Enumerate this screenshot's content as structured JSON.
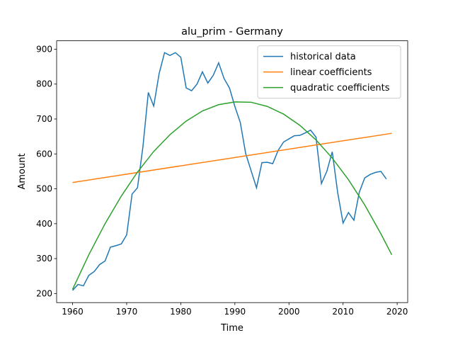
{
  "chart_data": {
    "type": "line",
    "title": "alu_prim - Germany",
    "x_label": "Time",
    "y_label": "Amount",
    "xlim": [
      1957.05,
      2021.95
    ],
    "xticks": [
      1960,
      1970,
      1980,
      1990,
      2000,
      2010,
      2020
    ],
    "ylim": [
      174,
      924
    ],
    "yticks": [
      200,
      300,
      400,
      500,
      600,
      700,
      800,
      900
    ],
    "legend": "upper right",
    "series": [
      {
        "name": "historical data",
        "color": "#1f77b4",
        "x": [
          1960,
          1961,
          1962,
          1963,
          1964,
          1965,
          1966,
          1967,
          1968,
          1969,
          1970,
          1971,
          1972,
          1973,
          1974,
          1975,
          1976,
          1977,
          1978,
          1979,
          1980,
          1981,
          1982,
          1983,
          1984,
          1985,
          1986,
          1987,
          1988,
          1989,
          1990,
          1991,
          1992,
          1993,
          1994,
          1995,
          1996,
          1997,
          1998,
          1999,
          2000,
          2001,
          2002,
          2003,
          2004,
          2005,
          2006,
          2007,
          2008,
          2009,
          2010,
          2011,
          2012,
          2013,
          2014,
          2015,
          2016,
          2017,
          2018
        ],
        "values": [
          209,
          226,
          222,
          252,
          263,
          283,
          293,
          333,
          337,
          342,
          368,
          485,
          503,
          620,
          776,
          737,
          830,
          890,
          882,
          890,
          877,
          789,
          781,
          800,
          835,
          803,
          825,
          861,
          816,
          789,
          736,
          690,
          601,
          552,
          503,
          575,
          576,
          572,
          610,
          634,
          643,
          652,
          653,
          660,
          668,
          648,
          515,
          550,
          606,
          490,
          402,
          432,
          410,
          490,
          531,
          541,
          547,
          550,
          528
        ]
      },
      {
        "name": "linear coefficients",
        "color": "#ff7f0e",
        "x": [
          1960,
          2019
        ],
        "values": [
          518,
          659
        ]
      },
      {
        "name": "quadratic coefficients",
        "color": "#2ca02c",
        "x": [
          1960,
          1963,
          1966,
          1969,
          1972,
          1975,
          1978,
          1981,
          1984,
          1987,
          1990,
          1993,
          1996,
          1999,
          2002,
          2005,
          2008,
          2011,
          2014,
          2017,
          2019
        ],
        "values": [
          212,
          311,
          400,
          479,
          548,
          607,
          655,
          694,
          723,
          741,
          749,
          748,
          736,
          714,
          682,
          640,
          588,
          526,
          454,
          371,
          311
        ]
      }
    ]
  }
}
